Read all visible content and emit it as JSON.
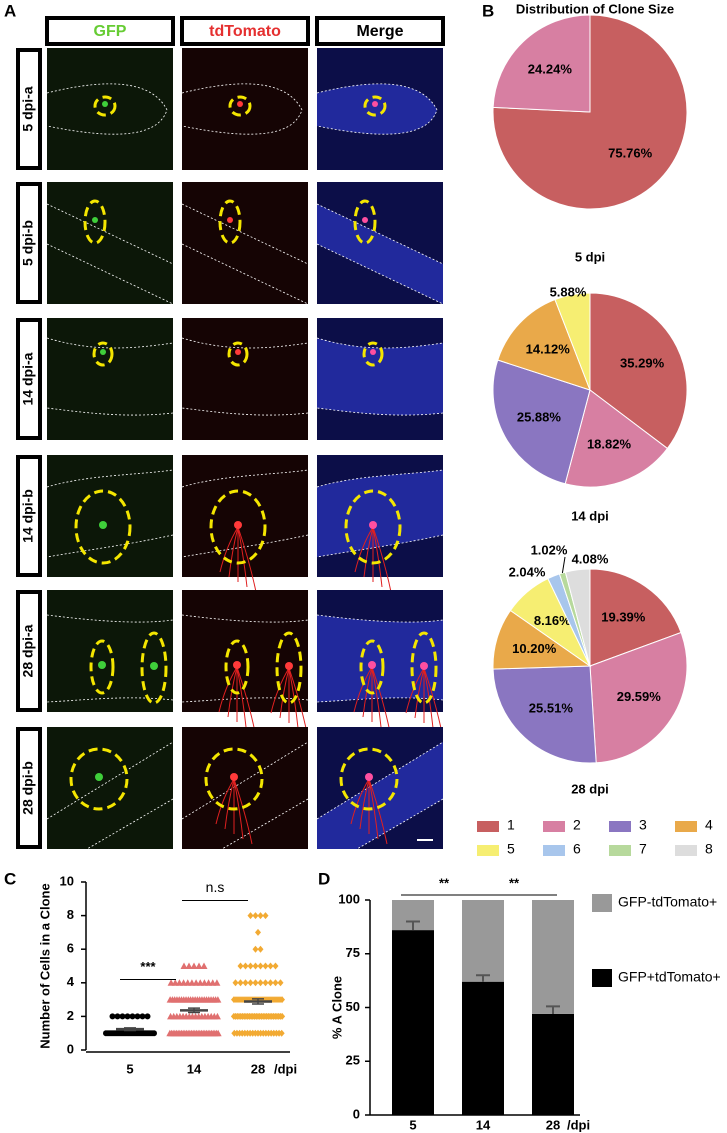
{
  "panel_labels": [
    "A",
    "B",
    "C",
    "D"
  ],
  "panel_a": {
    "columns": [
      "GFP",
      "tdTomato",
      "Merge"
    ],
    "rows": [
      "5 dpi-a",
      "5 dpi-b",
      "14 dpi-a",
      "14 dpi-b",
      "28 dpi-a",
      "28 dpi-b"
    ]
  },
  "chart_data": [
    {
      "type": "pie",
      "title": "Distribution of Clone Size",
      "caption": "5 dpi",
      "categories": [
        "1",
        "2"
      ],
      "values": [
        75.76,
        24.24
      ],
      "value_labels": [
        "75.76%",
        "24.24%"
      ],
      "colors": [
        "#c75f60",
        "#d77fa2"
      ]
    },
    {
      "type": "pie",
      "caption": "14 dpi",
      "categories": [
        "1",
        "2",
        "3",
        "4",
        "5"
      ],
      "values": [
        35.29,
        18.82,
        25.88,
        14.12,
        5.88
      ],
      "value_labels": [
        "35.29%",
        "18.82%",
        "25.88%",
        "14.12%",
        "5.88%"
      ],
      "colors": [
        "#c75f60",
        "#d77fa2",
        "#8a76c1",
        "#e9a94a",
        "#f6ee72"
      ]
    },
    {
      "type": "pie",
      "caption": "28 dpi",
      "categories": [
        "1",
        "2",
        "3",
        "4",
        "5",
        "6",
        "7",
        "8"
      ],
      "values": [
        19.39,
        29.59,
        25.51,
        10.2,
        8.16,
        2.04,
        1.02,
        4.08
      ],
      "value_labels": [
        "19.39%",
        "29.59%",
        "25.51%",
        "10.20%",
        "8.16%",
        "2.04%",
        "1.02%",
        "4.08%"
      ],
      "colors": [
        "#c75f60",
        "#d77fa2",
        "#8a76c1",
        "#e9a94a",
        "#f6ee72",
        "#a8c6ec",
        "#b7d99c",
        "#dddddd"
      ],
      "legend": true
    },
    {
      "type": "dot",
      "ylabel": "Number of Cells in a Clone",
      "categories": [
        "5",
        "14",
        "28"
      ],
      "x_unit": "/dpi",
      "ylim": [
        0,
        10
      ],
      "yticks": [
        0,
        2,
        4,
        6,
        8,
        10
      ],
      "annotations": [
        "***",
        "n.s"
      ],
      "groups": [
        {
          "color": "#000000",
          "marker": "circle",
          "mean": 1.24,
          "sem": 0.08,
          "values": [
            1,
            1,
            1,
            1,
            1,
            1,
            1,
            1,
            1,
            1,
            1,
            1,
            1,
            1,
            1,
            1,
            1,
            1,
            1,
            1,
            1,
            1,
            1,
            1,
            1,
            2,
            2,
            2,
            2,
            2,
            2,
            2,
            2
          ]
        },
        {
          "color": "#e07070",
          "marker": "triangle",
          "mean": 2.36,
          "sem": 0.13,
          "values": [
            1,
            1,
            1,
            1,
            1,
            1,
            1,
            1,
            1,
            1,
            1,
            1,
            1,
            1,
            1,
            1,
            1,
            1,
            1,
            1,
            1,
            1,
            1,
            1,
            1,
            1,
            1,
            1,
            1,
            1,
            2,
            2,
            2,
            2,
            2,
            2,
            2,
            2,
            2,
            2,
            2,
            2,
            2,
            2,
            2,
            2,
            3,
            3,
            3,
            3,
            3,
            3,
            3,
            3,
            3,
            3,
            3,
            3,
            3,
            3,
            3,
            3,
            3,
            3,
            3,
            3,
            3,
            3,
            4,
            4,
            4,
            4,
            4,
            4,
            4,
            4,
            4,
            4,
            4,
            4,
            5,
            5,
            5,
            5,
            5
          ]
        },
        {
          "color": "#f2aa33",
          "marker": "diamond",
          "mean": 2.89,
          "sem": 0.15,
          "values": [
            1,
            1,
            1,
            1,
            1,
            1,
            1,
            1,
            1,
            1,
            1,
            1,
            1,
            1,
            1,
            1,
            1,
            1,
            1,
            2,
            2,
            2,
            2,
            2,
            2,
            2,
            2,
            2,
            2,
            2,
            2,
            2,
            2,
            2,
            2,
            2,
            2,
            2,
            2,
            2,
            2,
            2,
            2,
            2,
            2,
            2,
            2,
            2,
            3,
            3,
            3,
            3,
            3,
            3,
            3,
            3,
            3,
            3,
            3,
            3,
            3,
            3,
            3,
            3,
            3,
            3,
            3,
            3,
            3,
            3,
            3,
            3,
            3,
            4,
            4,
            4,
            4,
            4,
            4,
            4,
            4,
            4,
            4,
            5,
            5,
            5,
            5,
            5,
            5,
            5,
            5,
            6,
            6,
            7,
            8,
            8,
            8,
            8
          ]
        }
      ]
    },
    {
      "type": "stacked_bar",
      "ylabel": "% A Clone",
      "categories": [
        "5",
        "14",
        "28"
      ],
      "x_unit": "/dpi",
      "ylim": [
        0,
        100
      ],
      "yticks": [
        0,
        25,
        50,
        75,
        100
      ],
      "annotations": [
        "**",
        "**"
      ],
      "series": [
        {
          "name": "GFP+tdTomato+",
          "color": "#000000",
          "values": [
            86,
            62,
            47
          ],
          "errors": [
            4,
            3,
            3.5
          ]
        },
        {
          "name": "GFP-tdTomato+",
          "color": "#999999",
          "values": [
            14,
            38,
            53
          ]
        }
      ]
    }
  ]
}
